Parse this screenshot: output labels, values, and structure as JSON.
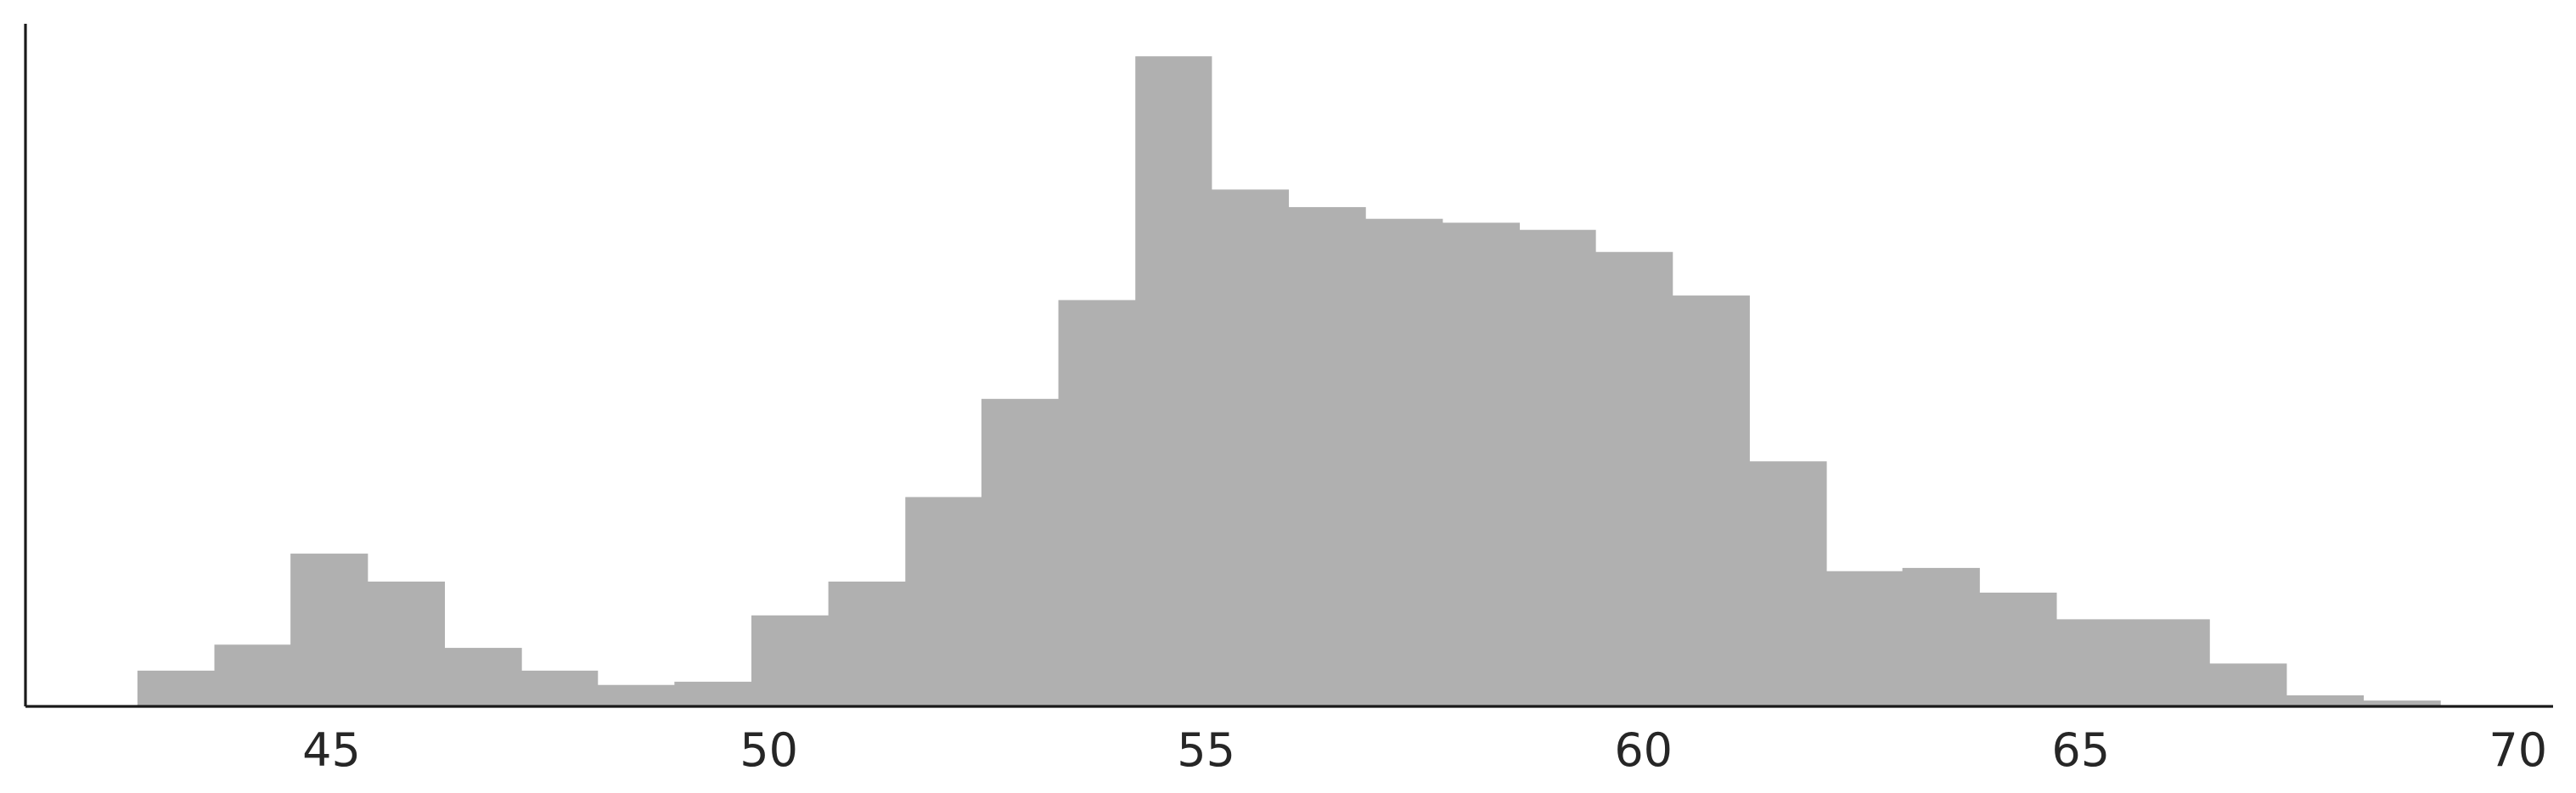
{
  "chart_data": {
    "type": "bar",
    "title": "",
    "xlabel": "",
    "ylabel": "",
    "xlim": [
      41.5,
      70.4
    ],
    "ylim": [
      0,
      1.05
    ],
    "y_ticks_visible": false,
    "grid": false,
    "bar_color": "#b0b0b0",
    "axis_color": "#1a1a1a",
    "x_ticks": [
      {
        "value": 45,
        "label": "45"
      },
      {
        "value": 50,
        "label": "50"
      },
      {
        "value": 55,
        "label": "55"
      },
      {
        "value": 60,
        "label": "60"
      },
      {
        "value": 65,
        "label": "65"
      },
      {
        "value": 70,
        "label": "70"
      }
    ],
    "bins": [
      {
        "x0": 42.78,
        "x1": 43.66,
        "value": 0.055
      },
      {
        "x0": 43.66,
        "x1": 44.53,
        "value": 0.095
      },
      {
        "x0": 44.53,
        "x1": 45.41,
        "value": 0.235
      },
      {
        "x0": 45.41,
        "x1": 46.29,
        "value": 0.192
      },
      {
        "x0": 46.29,
        "x1": 47.17,
        "value": 0.09
      },
      {
        "x0": 47.17,
        "x1": 48.04,
        "value": 0.055
      },
      {
        "x0": 48.04,
        "x1": 48.92,
        "value": 0.033
      },
      {
        "x0": 48.92,
        "x1": 49.8,
        "value": 0.038
      },
      {
        "x0": 49.8,
        "x1": 50.68,
        "value": 0.14
      },
      {
        "x0": 50.68,
        "x1": 51.56,
        "value": 0.192
      },
      {
        "x0": 51.56,
        "x1": 52.43,
        "value": 0.322
      },
      {
        "x0": 52.43,
        "x1": 53.31,
        "value": 0.473
      },
      {
        "x0": 53.31,
        "x1": 54.19,
        "value": 0.625
      },
      {
        "x0": 54.19,
        "x1": 55.06,
        "value": 1.0
      },
      {
        "x0": 55.06,
        "x1": 55.94,
        "value": 0.795
      },
      {
        "x0": 55.94,
        "x1": 56.82,
        "value": 0.768
      },
      {
        "x0": 56.82,
        "x1": 57.7,
        "value": 0.75
      },
      {
        "x0": 57.7,
        "x1": 58.58,
        "value": 0.744
      },
      {
        "x0": 58.58,
        "x1": 59.45,
        "value": 0.733
      },
      {
        "x0": 59.45,
        "x1": 60.33,
        "value": 0.699
      },
      {
        "x0": 60.33,
        "x1": 61.21,
        "value": 0.632
      },
      {
        "x0": 61.21,
        "x1": 62.09,
        "value": 0.377
      },
      {
        "x0": 62.09,
        "x1": 62.96,
        "value": 0.208
      },
      {
        "x0": 62.96,
        "x1": 63.84,
        "value": 0.213
      },
      {
        "x0": 63.84,
        "x1": 64.72,
        "value": 0.175
      },
      {
        "x0": 64.72,
        "x1": 65.6,
        "value": 0.134
      },
      {
        "x0": 65.6,
        "x1": 66.47,
        "value": 0.134
      },
      {
        "x0": 66.47,
        "x1": 67.35,
        "value": 0.066
      },
      {
        "x0": 67.35,
        "x1": 68.23,
        "value": 0.017
      },
      {
        "x0": 68.23,
        "x1": 69.11,
        "value": 0.009
      }
    ]
  }
}
